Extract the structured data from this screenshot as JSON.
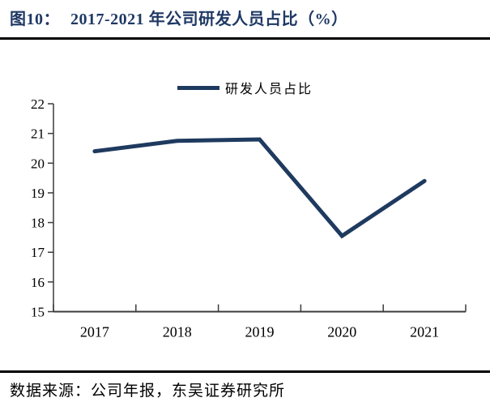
{
  "title": {
    "prefix": "图10：",
    "text": "2017-2021 年公司研发人员占比（%）"
  },
  "legend": {
    "label": "研发人员占比"
  },
  "source": {
    "text": "数据来源：公司年报，东吴证券研究所"
  },
  "colors": {
    "title": "#1F3864",
    "line": "#1F3A5F",
    "axis": "#3B3B3B",
    "divider": "#000000",
    "text": "#000000"
  },
  "chart_data": {
    "type": "line",
    "title": "2017-2021 年公司研发人员占比（%）",
    "categories": [
      "2017",
      "2018",
      "2019",
      "2020",
      "2021"
    ],
    "series": [
      {
        "name": "研发人员占比",
        "values": [
          20.4,
          20.75,
          20.8,
          17.55,
          19.4
        ]
      }
    ],
    "xlabel": "",
    "ylabel": "",
    "ylim": [
      15,
      22
    ],
    "ytick_step": 1,
    "grid": false,
    "legend_position": "top-center"
  }
}
